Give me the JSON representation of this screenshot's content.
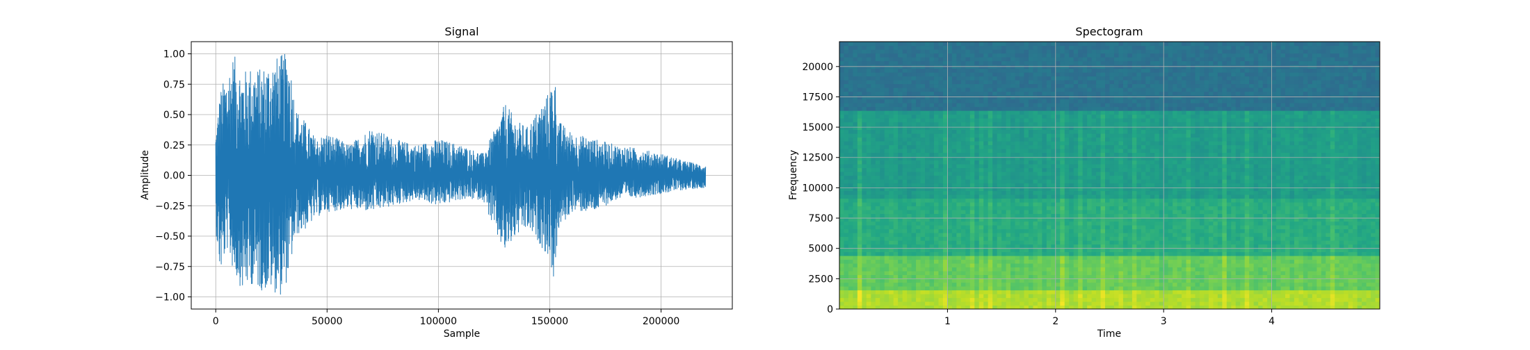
{
  "chart_data": [
    {
      "type": "line",
      "title": "Signal",
      "xlabel": "Sample",
      "ylabel": "Amplitude",
      "xlim": [
        -11000,
        232000
      ],
      "ylim": [
        -1.1,
        1.1
      ],
      "grid": true,
      "xticks": [
        0,
        50000,
        100000,
        150000,
        200000
      ],
      "xtick_labels": [
        "0",
        "50000",
        "100000",
        "150000",
        "200000"
      ],
      "yticks": [
        -1.0,
        -0.75,
        -0.5,
        -0.25,
        0.0,
        0.25,
        0.5,
        0.75,
        1.0
      ],
      "ytick_labels": [
        "−1.00",
        "−0.75",
        "−0.50",
        "−0.25",
        "0.00",
        "0.25",
        "0.50",
        "0.75",
        "1.00"
      ],
      "line_color": "#1f77b4",
      "envelope": {
        "sample": [
          0,
          2000,
          5000,
          8000,
          12000,
          16000,
          20000,
          25000,
          30000,
          33000,
          36000,
          40000,
          45000,
          50000,
          60000,
          70000,
          80000,
          90000,
          100000,
          110000,
          120000,
          126000,
          130000,
          135000,
          140000,
          145000,
          150000,
          152000,
          154000,
          160000,
          170000,
          180000,
          190000,
          200000,
          210000,
          220000
        ],
        "upper": [
          0.35,
          0.7,
          0.85,
          1.0,
          0.85,
          0.9,
          0.88,
          0.95,
          1.0,
          1.0,
          0.55,
          0.45,
          0.3,
          0.35,
          0.25,
          0.4,
          0.3,
          0.25,
          0.3,
          0.25,
          0.18,
          0.4,
          0.6,
          0.45,
          0.4,
          0.55,
          0.7,
          0.88,
          0.45,
          0.35,
          0.3,
          0.25,
          0.22,
          0.18,
          0.12,
          0.08
        ],
        "lower": [
          -0.45,
          -0.83,
          -0.6,
          -0.8,
          -0.95,
          -0.9,
          -0.95,
          -0.95,
          -1.0,
          -0.8,
          -0.5,
          -0.45,
          -0.35,
          -0.3,
          -0.28,
          -0.3,
          -0.25,
          -0.2,
          -0.25,
          -0.2,
          -0.2,
          -0.5,
          -0.65,
          -0.5,
          -0.45,
          -0.55,
          -0.7,
          -0.88,
          -0.45,
          -0.3,
          -0.3,
          -0.2,
          -0.18,
          -0.15,
          -0.12,
          -0.1
        ]
      }
    },
    {
      "type": "heatmap",
      "title": "Spectogram",
      "xlabel": "Time",
      "ylabel": "Frequency",
      "xlim": [
        0,
        5.0
      ],
      "ylim": [
        0,
        22050
      ],
      "grid": true,
      "xticks": [
        1,
        2,
        3,
        4
      ],
      "xtick_labels": [
        "1",
        "2",
        "3",
        "4"
      ],
      "yticks": [
        0,
        2500,
        5000,
        7500,
        10000,
        12500,
        15000,
        17500,
        20000
      ],
      "ytick_labels": [
        "0",
        "2500",
        "5000",
        "7500",
        "10000",
        "12500",
        "15000",
        "17500",
        "20000"
      ],
      "colormap": "viridis",
      "cutoff_frequency": 16300,
      "band_levels": [
        {
          "freq_max": 1500,
          "level": 0.88
        },
        {
          "freq_max": 4500,
          "level": 0.76
        },
        {
          "freq_max": 9000,
          "level": 0.62
        },
        {
          "freq_max": 16300,
          "level": 0.55
        },
        {
          "freq_max": 22050,
          "level": 0.38
        }
      ]
    }
  ]
}
